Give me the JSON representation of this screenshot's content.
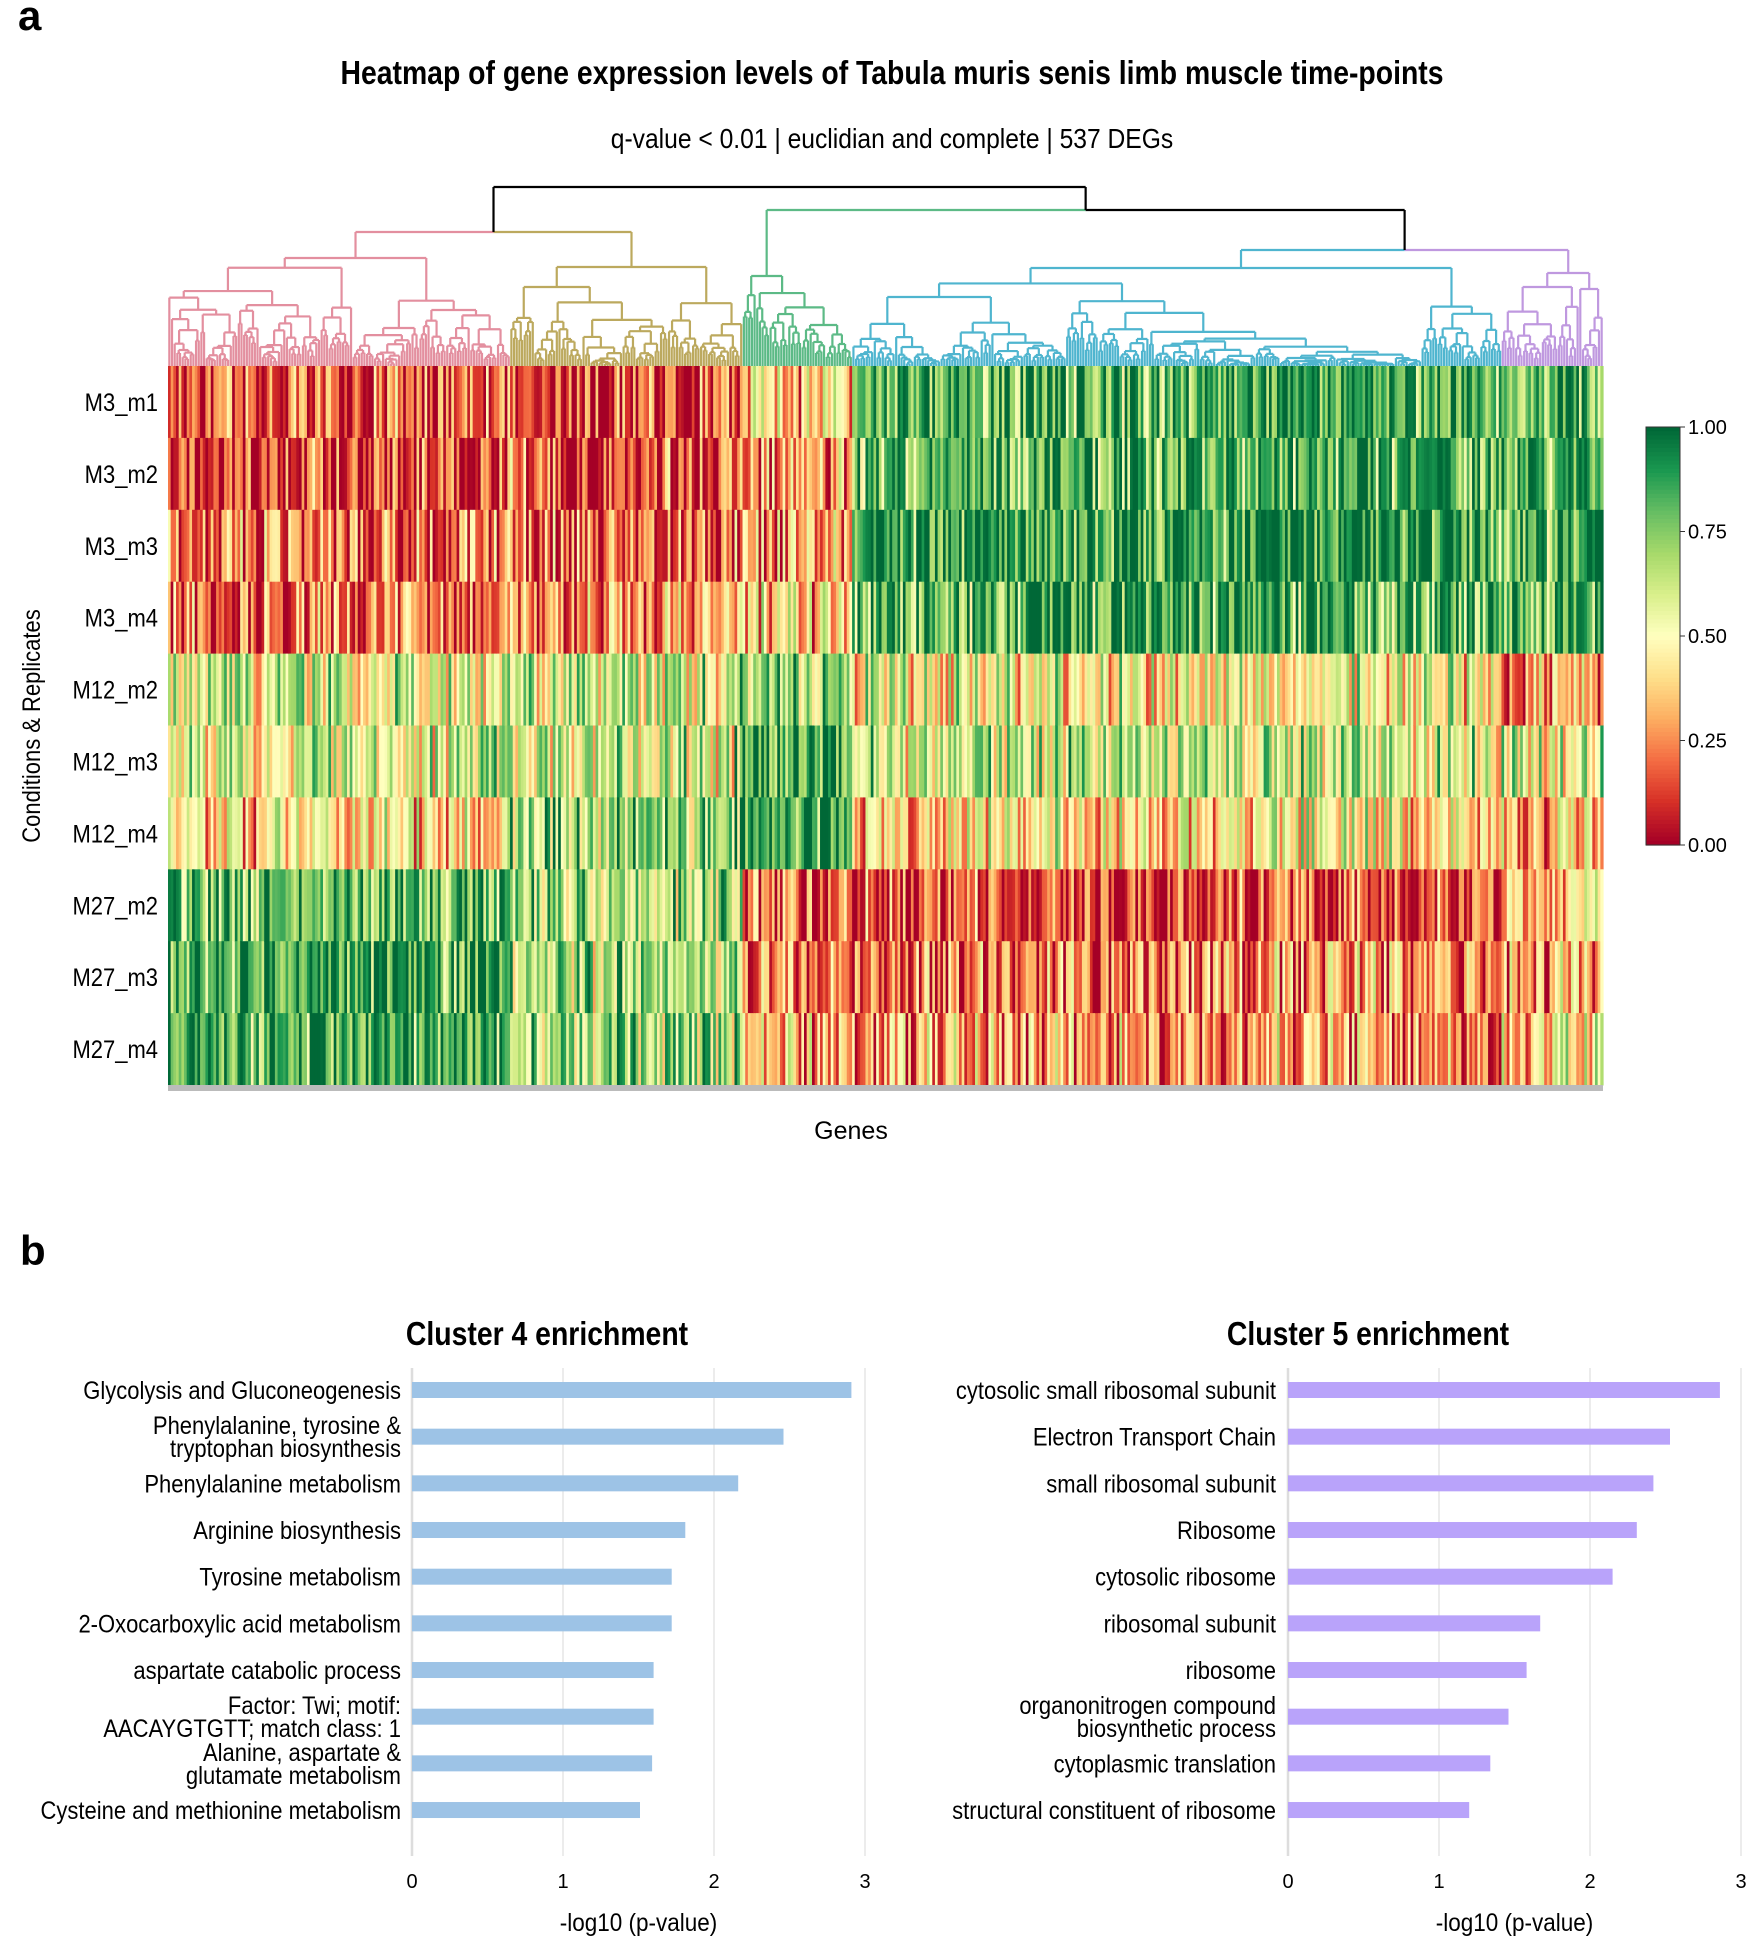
{
  "panel_a": "a",
  "panel_b": "b",
  "chart_data": [
    {
      "type": "heatmap",
      "title": "Heatmap of gene expression levels of Tabula muris senis  limb muscle time-points",
      "subtitle": "q-value < 0.01 | euclidian and complete | 537 DEGs",
      "xlabel": "Genes",
      "ylabel": "Conditions & Replicates",
      "rows": [
        "M3_m1",
        "M3_m2",
        "M3_m3",
        "M3_m4",
        "M12_m2",
        "M12_m3",
        "M12_m4",
        "M27_m2",
        "M27_m3",
        "M27_m4"
      ],
      "n_genes": 537,
      "clusters": [
        {
          "color": "#e38f9f"
        },
        {
          "color": "#bca95e"
        },
        {
          "color": "#5cba86"
        },
        {
          "color": "#4fb5cf"
        },
        {
          "color": "#bf98df"
        }
      ],
      "colorbar": {
        "ticks": [
          "1.00",
          "0.75",
          "0.50",
          "0.25",
          "0.00"
        ],
        "range": [
          0,
          1
        ],
        "colors": [
          "#a50026",
          "#d73027",
          "#f46d43",
          "#fdae61",
          "#fee08b",
          "#ffffbf",
          "#d9ef8b",
          "#a6d96a",
          "#66bd63",
          "#1a9850",
          "#006837"
        ]
      }
    },
    {
      "type": "bar",
      "orientation": "horizontal",
      "title": "Cluster 4 enrichment",
      "xlabel": "-log10 (p-value)",
      "xlim": [
        0,
        3
      ],
      "xticks": [
        "0",
        "1",
        "2",
        "3"
      ],
      "color": "#9dc3e6",
      "categories": [
        "Glycolysis and Gluconeogenesis",
        "Phenylalanine, tyrosine &\ntryptophan biosynthesis",
        "Phenylalanine metabolism",
        "Arginine biosynthesis",
        "Tyrosine metabolism",
        "2-Oxocarboxylic acid metabolism",
        "aspartate catabolic process",
        "Factor: Twi; motif:\nAACAYGTGTT; match class: 1",
        "Alanine, aspartate &\nglutamate metabolism",
        "Cysteine and methionine metabolism"
      ],
      "values": [
        2.91,
        2.46,
        2.16,
        1.81,
        1.72,
        1.72,
        1.6,
        1.6,
        1.59,
        1.51
      ]
    },
    {
      "type": "bar",
      "orientation": "horizontal",
      "title": "Cluster 5 enrichment",
      "xlabel": "-log10 (p-value)",
      "xlim": [
        0,
        3
      ],
      "xticks": [
        "0",
        "1",
        "2",
        "3"
      ],
      "color": "#b9a3fa",
      "categories": [
        "cytosolic small ribosomal subunit",
        "Electron Transport Chain",
        "small ribosomal subunit",
        "Ribosome",
        "cytosolic ribosome",
        "ribosomal subunit",
        "ribosome",
        "organonitrogen compound\nbiosynthetic process",
        "cytoplasmic translation",
        "structural constituent of ribosome"
      ],
      "values": [
        2.86,
        2.53,
        2.42,
        2.31,
        2.15,
        1.67,
        1.58,
        1.46,
        1.34,
        1.2
      ]
    }
  ]
}
